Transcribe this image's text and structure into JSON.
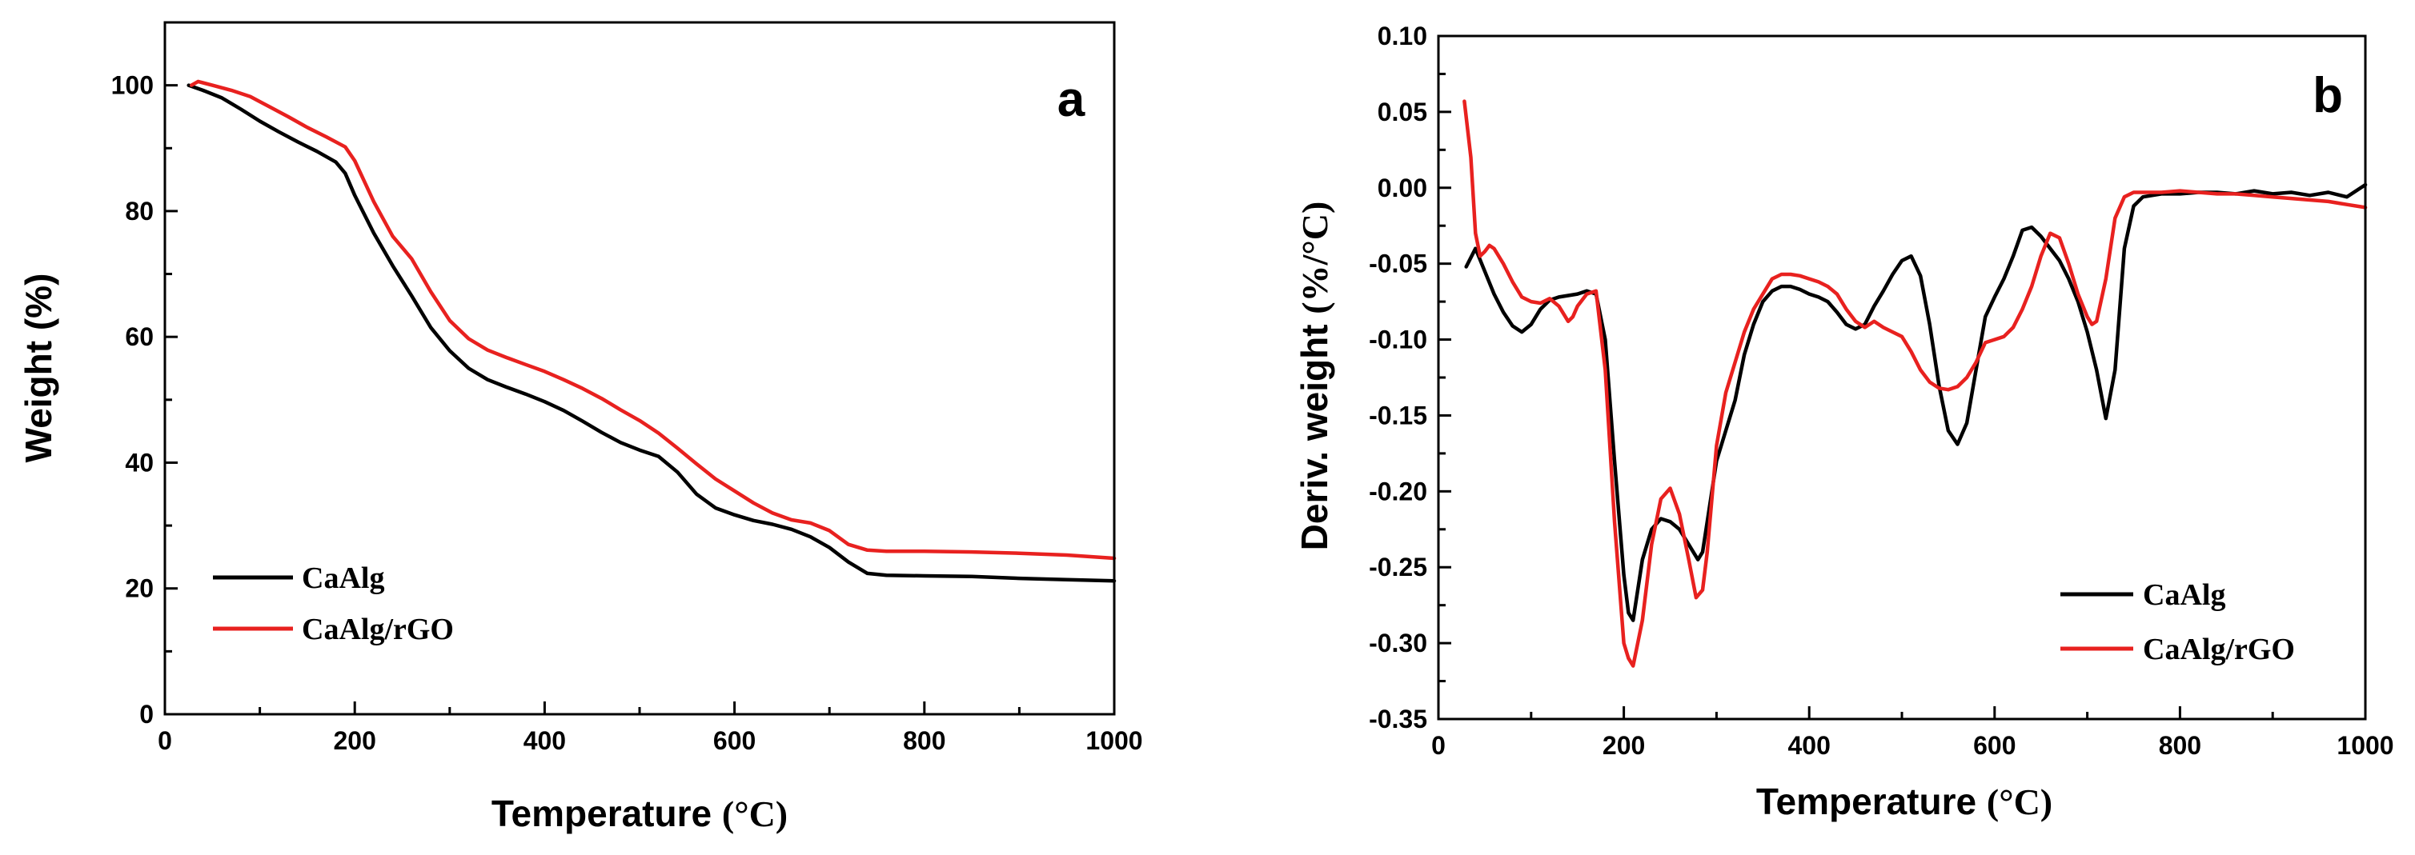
{
  "chart_data": [
    {
      "type": "line",
      "panel_label": "a",
      "title": "",
      "xlabel": "Temperature",
      "xlabel_unit": "(°C)",
      "ylabel": "Weight (%)",
      "xlim": [
        0,
        1000
      ],
      "ylim": [
        0,
        110
      ],
      "x_ticks": [
        0,
        200,
        400,
        600,
        800,
        1000
      ],
      "x_tick_labels": [
        "0",
        "200",
        "400",
        "600",
        "800",
        "1000"
      ],
      "y_ticks": [
        0,
        20,
        40,
        60,
        80,
        100
      ],
      "y_tick_labels": [
        "0",
        "20",
        "40",
        "60",
        "80",
        "100"
      ],
      "grid": false,
      "legend_position": "bottom-left",
      "series": [
        {
          "name": "CaAlg",
          "color": "#000000",
          "x": [
            25,
            40,
            60,
            80,
            100,
            120,
            140,
            160,
            180,
            190,
            200,
            220,
            240,
            260,
            280,
            300,
            320,
            340,
            360,
            380,
            400,
            420,
            440,
            460,
            480,
            500,
            520,
            540,
            560,
            580,
            600,
            620,
            640,
            660,
            680,
            700,
            720,
            740,
            760,
            800,
            850,
            900,
            950,
            1000
          ],
          "values": [
            100,
            99.2,
            98,
            96.2,
            94.3,
            92.6,
            91,
            89.5,
            87.8,
            86,
            82.5,
            76.5,
            71.3,
            66.5,
            61.5,
            57.8,
            55,
            53.2,
            52,
            50.9,
            49.7,
            48.3,
            46.6,
            44.8,
            43.2,
            42,
            41,
            38.5,
            35,
            32.8,
            31.7,
            30.8,
            30.2,
            29.4,
            28.2,
            26.5,
            24.2,
            22.4,
            22.1,
            22,
            21.9,
            21.6,
            21.4,
            21.2
          ]
        },
        {
          "name": "CaAlg/rGO",
          "color": "#e8211f",
          "x": [
            28,
            35,
            50,
            70,
            90,
            110,
            130,
            150,
            170,
            190,
            200,
            220,
            240,
            260,
            280,
            300,
            320,
            340,
            360,
            380,
            400,
            420,
            440,
            460,
            480,
            500,
            520,
            540,
            560,
            580,
            600,
            620,
            640,
            660,
            680,
            700,
            720,
            740,
            760,
            800,
            850,
            900,
            950,
            1000
          ],
          "values": [
            100,
            100.6,
            100,
            99.2,
            98.2,
            96.6,
            95,
            93.3,
            91.8,
            90.2,
            88,
            81.5,
            76,
            72.4,
            67.2,
            62.6,
            59.7,
            57.9,
            56.7,
            55.6,
            54.5,
            53.2,
            51.8,
            50.2,
            48.4,
            46.7,
            44.7,
            42.3,
            39.8,
            37.4,
            35.5,
            33.6,
            32,
            30.9,
            30.4,
            29.2,
            27,
            26.1,
            25.9,
            25.9,
            25.8,
            25.6,
            25.3,
            24.8
          ]
        }
      ]
    },
    {
      "type": "line",
      "panel_label": "b",
      "title": "",
      "xlabel": "Temperature",
      "xlabel_unit": "(°C)",
      "ylabel": "Deriv. weight",
      "ylabel_unit": "(%/°C)",
      "xlim": [
        0,
        1000
      ],
      "ylim": [
        -0.35,
        0.1
      ],
      "x_ticks": [
        0,
        200,
        400,
        600,
        800,
        1000
      ],
      "x_tick_labels": [
        "0",
        "200",
        "400",
        "600",
        "800",
        "1000"
      ],
      "y_ticks": [
        -0.35,
        -0.3,
        -0.25,
        -0.2,
        -0.15,
        -0.1,
        -0.05,
        0,
        0.05,
        0.1
      ],
      "y_tick_labels": [
        "-0.35",
        "-0.30",
        "-0.25",
        "-0.20",
        "-0.15",
        "-0.10",
        "-0.05",
        "0.00",
        "0.05",
        "0.10"
      ],
      "grid": false,
      "legend_position": "bottom-right",
      "series": [
        {
          "name": "CaAlg",
          "color": "#000000",
          "x": [
            30,
            40,
            50,
            60,
            70,
            80,
            90,
            100,
            110,
            120,
            130,
            140,
            150,
            160,
            170,
            180,
            190,
            200,
            205,
            210,
            220,
            230,
            240,
            250,
            260,
            270,
            280,
            285,
            290,
            300,
            310,
            320,
            330,
            340,
            350,
            360,
            370,
            380,
            390,
            400,
            410,
            420,
            430,
            440,
            450,
            460,
            470,
            480,
            490,
            500,
            510,
            520,
            530,
            540,
            550,
            560,
            570,
            580,
            590,
            600,
            610,
            620,
            630,
            640,
            650,
            660,
            670,
            680,
            690,
            700,
            710,
            720,
            730,
            740,
            750,
            760,
            780,
            800,
            820,
            840,
            860,
            880,
            900,
            920,
            940,
            960,
            980,
            1000
          ],
          "values": [
            -0.052,
            -0.04,
            -0.055,
            -0.07,
            -0.082,
            -0.091,
            -0.095,
            -0.09,
            -0.08,
            -0.074,
            -0.072,
            -0.071,
            -0.07,
            -0.068,
            -0.07,
            -0.1,
            -0.18,
            -0.255,
            -0.28,
            -0.285,
            -0.245,
            -0.225,
            -0.218,
            -0.22,
            -0.225,
            -0.235,
            -0.245,
            -0.24,
            -0.22,
            -0.18,
            -0.16,
            -0.14,
            -0.11,
            -0.09,
            -0.075,
            -0.068,
            -0.065,
            -0.065,
            -0.067,
            -0.07,
            -0.072,
            -0.075,
            -0.082,
            -0.09,
            -0.093,
            -0.09,
            -0.078,
            -0.068,
            -0.057,
            -0.048,
            -0.045,
            -0.058,
            -0.09,
            -0.13,
            -0.16,
            -0.169,
            -0.155,
            -0.12,
            -0.085,
            -0.072,
            -0.06,
            -0.045,
            -0.028,
            -0.026,
            -0.032,
            -0.04,
            -0.048,
            -0.06,
            -0.075,
            -0.095,
            -0.12,
            -0.152,
            -0.12,
            -0.04,
            -0.012,
            -0.006,
            -0.004,
            -0.004,
            -0.003,
            -0.003,
            -0.004,
            -0.002,
            -0.004,
            -0.003,
            -0.005,
            -0.003,
            -0.006,
            0.002
          ]
        },
        {
          "name": "CaAlg/rGO",
          "color": "#e8211f",
          "x": [
            28,
            35,
            40,
            45,
            50,
            55,
            60,
            70,
            80,
            90,
            100,
            110,
            120,
            130,
            140,
            145,
            150,
            160,
            170,
            180,
            190,
            200,
            205,
            210,
            220,
            230,
            240,
            250,
            260,
            270,
            278,
            285,
            290,
            300,
            310,
            320,
            330,
            340,
            350,
            360,
            370,
            380,
            390,
            400,
            410,
            420,
            430,
            440,
            450,
            460,
            470,
            480,
            490,
            500,
            510,
            520,
            530,
            540,
            550,
            560,
            570,
            580,
            590,
            600,
            610,
            620,
            630,
            640,
            650,
            660,
            670,
            680,
            690,
            700,
            705,
            710,
            720,
            730,
            740,
            750,
            760,
            780,
            800,
            820,
            840,
            860,
            880,
            900,
            920,
            940,
            960,
            980,
            1000
          ],
          "values": [
            0.057,
            0.02,
            -0.03,
            -0.045,
            -0.042,
            -0.038,
            -0.04,
            -0.05,
            -0.062,
            -0.072,
            -0.075,
            -0.076,
            -0.073,
            -0.078,
            -0.088,
            -0.085,
            -0.078,
            -0.07,
            -0.068,
            -0.12,
            -0.22,
            -0.3,
            -0.31,
            -0.315,
            -0.285,
            -0.235,
            -0.205,
            -0.198,
            -0.215,
            -0.245,
            -0.27,
            -0.265,
            -0.24,
            -0.17,
            -0.135,
            -0.115,
            -0.095,
            -0.08,
            -0.07,
            -0.06,
            -0.057,
            -0.057,
            -0.058,
            -0.06,
            -0.062,
            -0.065,
            -0.07,
            -0.08,
            -0.088,
            -0.092,
            -0.088,
            -0.092,
            -0.095,
            -0.098,
            -0.108,
            -0.12,
            -0.128,
            -0.132,
            -0.133,
            -0.131,
            -0.125,
            -0.115,
            -0.102,
            -0.1,
            -0.098,
            -0.092,
            -0.08,
            -0.065,
            -0.045,
            -0.03,
            -0.033,
            -0.05,
            -0.07,
            -0.085,
            -0.09,
            -0.088,
            -0.06,
            -0.02,
            -0.006,
            -0.003,
            -0.003,
            -0.003,
            -0.002,
            -0.003,
            -0.004,
            -0.004,
            -0.005,
            -0.006,
            -0.007,
            -0.008,
            -0.009,
            -0.011,
            -0.013
          ]
        }
      ]
    }
  ]
}
